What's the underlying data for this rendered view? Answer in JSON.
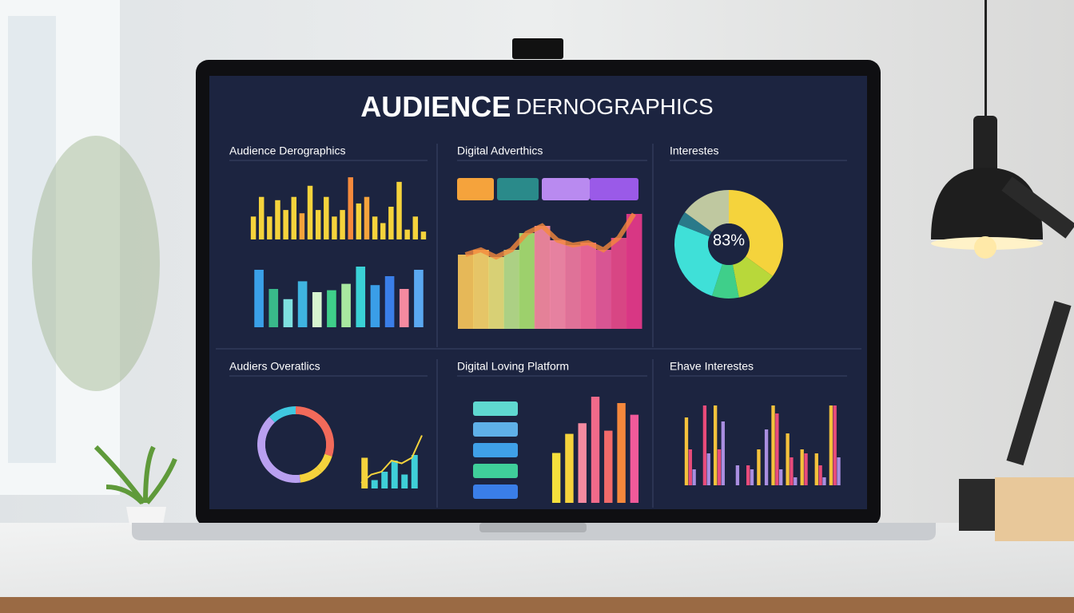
{
  "header": {
    "title_bold": "AUDIENCE",
    "title_light": "DERNOGRAPHICS"
  },
  "panels": [
    {
      "title": "Audience Derographics",
      "charts": [
        {
          "type": "bar",
          "ylim": [
            0,
            100
          ],
          "values": [
            35,
            65,
            35,
            60,
            45,
            65,
            40,
            82,
            45,
            65,
            35,
            45,
            95,
            55,
            65,
            35,
            25,
            50,
            88,
            15,
            35,
            12
          ],
          "colors": [
            "#f5d33c",
            "#f5d33c",
            "#f5d33c",
            "#f5d33c",
            "#f5d33c",
            "#f5d33c",
            "#f5a33c",
            "#f5d33c",
            "#f5d33c",
            "#f5d33c",
            "#f5d33c",
            "#f5d33c",
            "#f58a3c",
            "#f5d33c",
            "#f5a33c",
            "#f5d33c",
            "#f5d33c",
            "#f5d33c",
            "#f5d33c",
            "#f5d33c",
            "#f5d33c",
            "#f5d33c"
          ]
        },
        {
          "type": "bar",
          "ylim": [
            0,
            100
          ],
          "values": [
            90,
            60,
            44,
            72,
            55,
            58,
            68,
            95,
            66,
            80,
            60,
            90
          ],
          "colors": [
            "#3aa0e8",
            "#39b98a",
            "#7ee0e0",
            "#3fb4e0",
            "#d7f5d0",
            "#3fcf8a",
            "#a8e8a0",
            "#3ad1d6",
            "#3a9ee8",
            "#3a7ee8",
            "#f58aa0",
            "#5aa8f0"
          ]
        }
      ]
    },
    {
      "title": "Digital Adverthics",
      "charts": [
        {
          "type": "area",
          "ylim": [
            0,
            100
          ],
          "values": [
            62,
            66,
            60,
            66,
            80,
            86,
            74,
            70,
            72,
            66,
            76,
            96
          ],
          "colors": [
            "#f7c65a",
            "#f7d46a",
            "#e8e07a",
            "#b8e08a",
            "#a8e070",
            "#f58aa0",
            "#f78aa8",
            "#f07aa0",
            "#f56a9a",
            "#e85a9a",
            "#e84a8a",
            "#e83a8a"
          ]
        }
      ]
    },
    {
      "title": "Interestes",
      "charts": [
        {
          "type": "pie",
          "values": [
            35,
            12,
            8,
            26,
            4,
            15
          ],
          "colors": [
            "#f5d33c",
            "#b8d83a",
            "#3fcf8a",
            "#3fe0d8",
            "#2a7a8a",
            "#bfc8a0"
          ],
          "center_label": "83%"
        }
      ]
    },
    {
      "title": "Audiers Overatlics",
      "charts": [
        {
          "type": "pie",
          "values": [
            30,
            8,
            10,
            40,
            12
          ],
          "colors": [
            "#f26a5a",
            "#f5d33c",
            "#f5d33c",
            "#b9a0f0",
            "#3fc8e0"
          ],
          "ring": true
        },
        {
          "type": "bar",
          "ylim": [
            0,
            100
          ],
          "values": [
            55,
            15,
            30,
            50,
            25,
            60
          ],
          "colors": [
            "#f5d33c",
            "#3fcfd8",
            "#3fcfd8",
            "#3fcfd8",
            "#3fcfd8",
            "#3fcfd8"
          ]
        },
        {
          "type": "line",
          "ylim": [
            0,
            100
          ],
          "values": [
            10,
            25,
            30,
            50,
            45,
            55,
            95
          ],
          "color": "#f5d33c"
        }
      ]
    },
    {
      "title": "Digital Loving Platform",
      "charts": [
        {
          "type": "bar",
          "ylim": [
            0,
            100
          ],
          "values": [
            47,
            65,
            75,
            100,
            68,
            94,
            83
          ],
          "colors": [
            "#f5e03c",
            "#f5d33c",
            "#f58aa0",
            "#f26a8a",
            "#f26a6a",
            "#f5883c",
            "#f05a9a"
          ]
        }
      ]
    },
    {
      "title": "Ehave Interestes",
      "charts": [
        {
          "type": "grouped",
          "ylim": [
            0,
            100
          ],
          "series": [
            {
              "color": "#f5c23c",
              "values": [
                85,
                0,
                100,
                0,
                0,
                45,
                100,
                65,
                45,
                40,
                100
              ]
            },
            {
              "color": "#e84b7a",
              "values": [
                45,
                100,
                45,
                0,
                25,
                0,
                90,
                35,
                40,
                25,
                100
              ]
            },
            {
              "color": "#a98ee0",
              "values": [
                20,
                40,
                80,
                25,
                20,
                70,
                20,
                10,
                0,
                10,
                35
              ]
            }
          ]
        }
      ]
    }
  ]
}
